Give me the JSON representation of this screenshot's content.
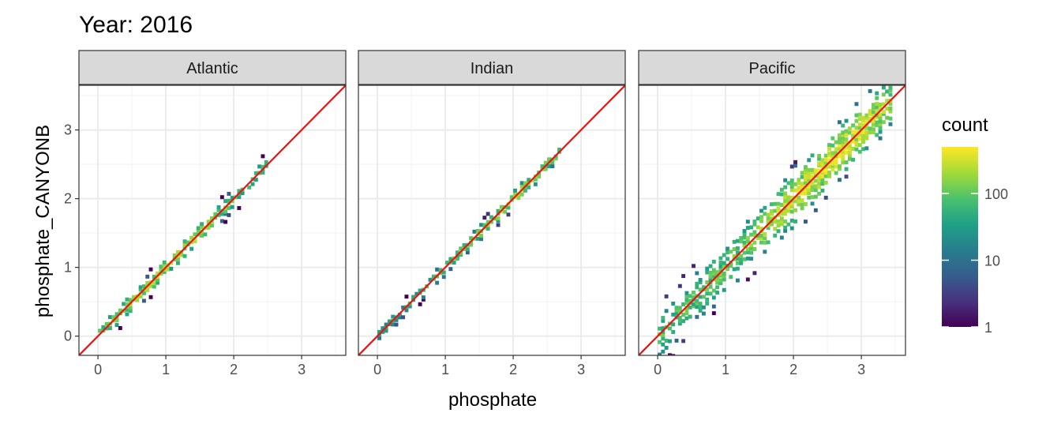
{
  "chart_data": {
    "type": "heatmap",
    "title": "Year: 2016",
    "xlabel": "phosphate",
    "ylabel": "phosphate_CANYONB",
    "xlim": [
      -0.28,
      3.65
    ],
    "ylim": [
      -0.28,
      3.65
    ],
    "x_ticks": [
      "0",
      "1",
      "2",
      "3"
    ],
    "y_ticks": [
      "0",
      "1",
      "2",
      "3"
    ],
    "reference_line": {
      "slope": 1,
      "intercept": 0,
      "color": "#ee1111"
    },
    "grid": true,
    "legend": {
      "title": "count",
      "placement": "right",
      "scale": "log10",
      "range": [
        1,
        500
      ],
      "labels": [
        "1",
        "10",
        "100"
      ],
      "colors": [
        "#440154",
        "#46327e",
        "#365c8d",
        "#277f8e",
        "#1fa187",
        "#4ac16d",
        "#a0da39",
        "#fde725"
      ]
    },
    "panels": [
      {
        "name": "Atlantic",
        "x_range": [
          0,
          2.45
        ],
        "spread": 0.06,
        "peak_at": 1.0,
        "peak_count": 300
      },
      {
        "name": "Indian",
        "x_range": [
          0,
          2.65
        ],
        "spread": 0.05,
        "peak_at": 2.0,
        "peak_count": 250
      },
      {
        "name": "Pacific",
        "x_range": [
          0,
          3.4
        ],
        "spread": 0.17,
        "peak_at": 2.5,
        "peak_count": 500
      }
    ]
  }
}
